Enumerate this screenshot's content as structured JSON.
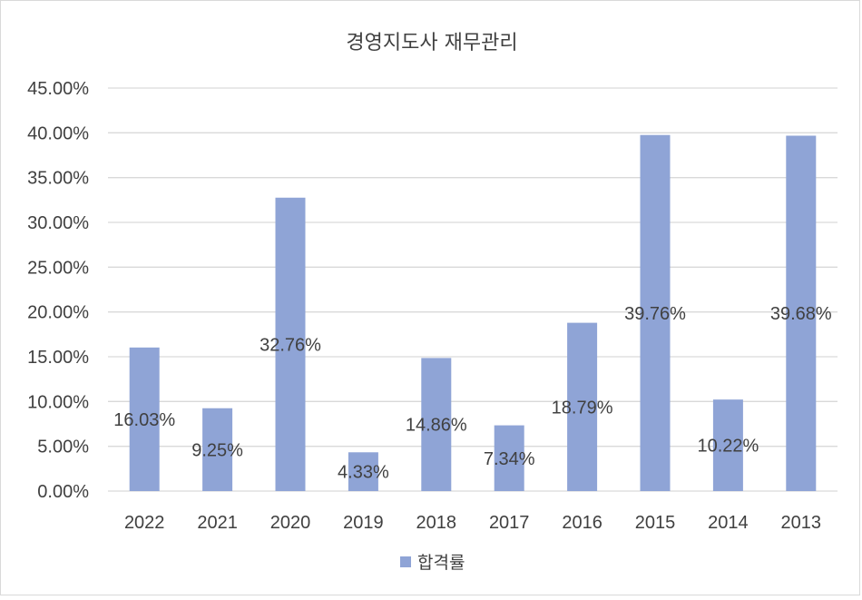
{
  "chart_data": {
    "type": "bar",
    "title": "경영지도사 재무관리",
    "xlabel": "",
    "ylabel": "",
    "categories": [
      "2022",
      "2021",
      "2020",
      "2019",
      "2018",
      "2017",
      "2016",
      "2015",
      "2014",
      "2013"
    ],
    "series": [
      {
        "name": "합격률",
        "color": "#8fa4d6",
        "values": [
          16.03,
          9.25,
          32.76,
          4.33,
          14.86,
          7.34,
          18.79,
          39.76,
          10.22,
          39.68
        ],
        "data_labels": [
          "16.03%",
          "9.25%",
          "32.76%",
          "4.33%",
          "14.86%",
          "7.34%",
          "18.79%",
          "39.76%",
          "10.22%",
          "39.68%"
        ]
      }
    ],
    "ylim": [
      0,
      45
    ],
    "y_ticks": [
      0,
      5,
      10,
      15,
      20,
      25,
      30,
      35,
      40,
      45
    ],
    "y_tick_labels": [
      "0.00%",
      "5.00%",
      "10.00%",
      "15.00%",
      "20.00%",
      "25.00%",
      "30.00%",
      "35.00%",
      "40.00%",
      "45.00%"
    ],
    "grid": true,
    "legend_position": "bottom",
    "gridline_color": "#d9d9d9",
    "text_color": "#404040"
  }
}
